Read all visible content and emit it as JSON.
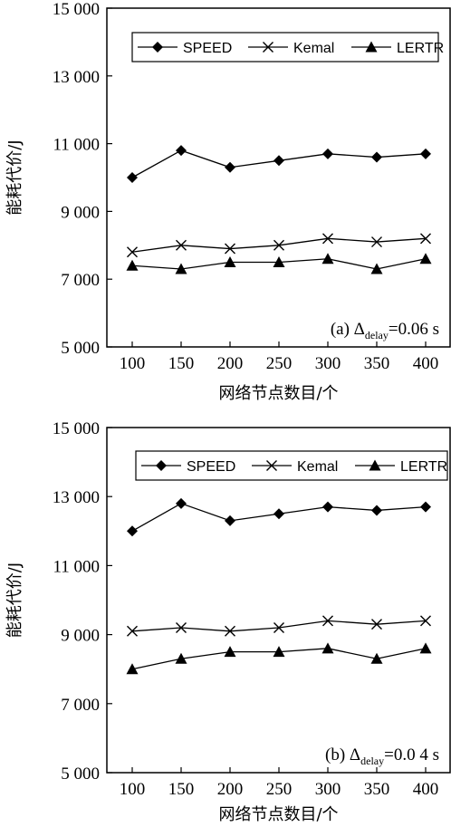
{
  "chart_data": [
    {
      "type": "line",
      "panel": "a",
      "annotation": {
        "prefix": "(a) Δ",
        "subscript": "delay",
        "suffix": "=0.06 s"
      },
      "xlabel": "网络节点数目/个",
      "ylabel": "能耗代价/J",
      "x": [
        100,
        150,
        200,
        250,
        300,
        350,
        400
      ],
      "xticks": [
        "100",
        "150",
        "200",
        "250",
        "300",
        "350",
        "400"
      ],
      "ylim": [
        5000,
        15000
      ],
      "yticks": [
        5000,
        7000,
        9000,
        11000,
        13000,
        15000
      ],
      "ytick_labels": [
        "5 000",
        "7 000",
        "9 000",
        "11 000",
        "13 000",
        "15 000"
      ],
      "legend_position": "top-right",
      "grid": false,
      "series": [
        {
          "name": "SPEED",
          "marker": "diamond",
          "values": [
            10000,
            10800,
            10300,
            10500,
            10700,
            10600,
            10700
          ]
        },
        {
          "name": "Kemal",
          "marker": "x",
          "values": [
            7800,
            8000,
            7900,
            8000,
            8200,
            8100,
            8200
          ]
        },
        {
          "name": "LERTR",
          "marker": "triangle",
          "values": [
            7400,
            7300,
            7500,
            7500,
            7600,
            7300,
            7600
          ]
        }
      ]
    },
    {
      "type": "line",
      "panel": "b",
      "annotation": {
        "prefix": "(b) Δ",
        "subscript": "delay",
        "suffix": "=0.0 4 s"
      },
      "xlabel": "网络节点数目/个",
      "ylabel": "能耗代价/J",
      "x": [
        100,
        150,
        200,
        250,
        300,
        350,
        400
      ],
      "xticks": [
        "100",
        "150",
        "200",
        "250",
        "300",
        "350",
        "400"
      ],
      "ylim": [
        5000,
        15000
      ],
      "yticks": [
        5000,
        7000,
        9000,
        11000,
        13000,
        15000
      ],
      "ytick_labels": [
        "5 000",
        "7 000",
        "9 000",
        "11 000",
        "13 000",
        "15 000"
      ],
      "legend_position": "top-right",
      "grid": false,
      "series": [
        {
          "name": "SPEED",
          "marker": "diamond",
          "values": [
            12000,
            12800,
            12300,
            12500,
            12700,
            12600,
            12700
          ]
        },
        {
          "name": "Kemal",
          "marker": "x",
          "values": [
            9100,
            9200,
            9100,
            9200,
            9400,
            9300,
            9400
          ]
        },
        {
          "name": "LERTR",
          "marker": "triangle",
          "values": [
            8000,
            8300,
            8500,
            8500,
            8600,
            8300,
            8600
          ]
        }
      ]
    }
  ]
}
